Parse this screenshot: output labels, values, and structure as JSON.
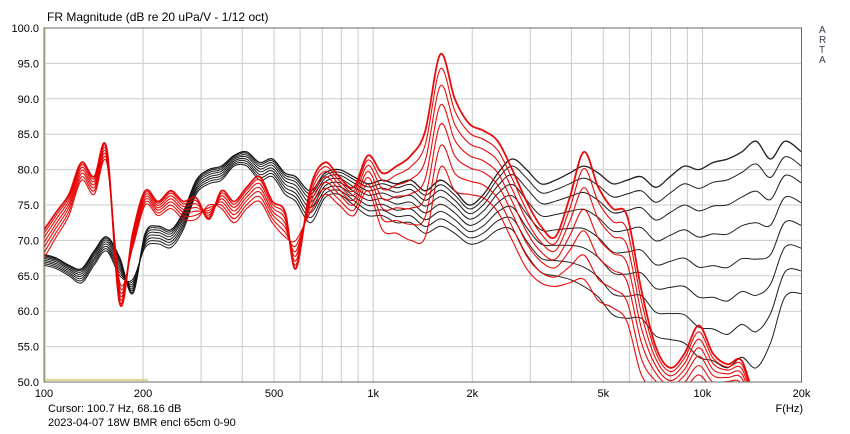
{
  "title": "FR Magnitude (dB re 20 uPa/V - 1/12 oct)",
  "branding": {
    "letters": [
      "A",
      "R",
      "T",
      "A"
    ]
  },
  "footer": {
    "cursor_readout": "Cursor: 100.7 Hz, 68.16 dB",
    "status_line": "2023-04-07 18W BMR encl 65cm 0-90"
  },
  "colors": {
    "background": "#ffffff",
    "grid": "#cbcbcb",
    "plot_border": "#6b6b6b",
    "text": "#000000",
    "marker_yellow": "#d8d88f",
    "red_family": "#e60000",
    "black_family": "#141414",
    "watermark_text": "#3a3a52"
  },
  "axes": {
    "x_unit_label": "F(Hz)",
    "f_range": [
      100,
      20000
    ],
    "db_range": [
      50,
      100
    ],
    "x_gridlines": [
      100,
      200,
      300,
      400,
      500,
      600,
      700,
      800,
      900,
      1000,
      2000,
      3000,
      4000,
      5000,
      6000,
      7000,
      8000,
      9000,
      10000,
      20000
    ],
    "x_ticks": [
      {
        "f": 100,
        "label": "100"
      },
      {
        "f": 200,
        "label": "200"
      },
      {
        "f": 500,
        "label": "500"
      },
      {
        "f": 1000,
        "label": "1k"
      },
      {
        "f": 2000,
        "label": "2k"
      },
      {
        "f": 5000,
        "label": "5k"
      },
      {
        "f": 10000,
        "label": "10k"
      },
      {
        "f": 20000,
        "label": "20k"
      }
    ],
    "y_ticks": [
      {
        "db": 100,
        "label": "100.0"
      },
      {
        "db": 95,
        "label": "95.0"
      },
      {
        "db": 90,
        "label": "90.0"
      },
      {
        "db": 85,
        "label": "85.0"
      },
      {
        "db": 80,
        "label": "80.0"
      },
      {
        "db": 75,
        "label": "75.0"
      },
      {
        "db": 70,
        "label": "70.0"
      },
      {
        "db": 65,
        "label": "65.0"
      },
      {
        "db": 60,
        "label": "60.0"
      },
      {
        "db": 55,
        "label": "55.0"
      },
      {
        "db": 50,
        "label": "50.0"
      }
    ]
  },
  "cursor_marker": {
    "f_hz": 100.7,
    "band_f_range": [
      100,
      207
    ],
    "band_db": 50.3
  },
  "chart_data": {
    "type": "line",
    "title": "FR Magnitude (dB re 20 uPa/V - 1/12 oct)",
    "xlabel": "F(Hz)",
    "ylabel": "dB",
    "x_scale": "log",
    "xlim": [
      100,
      20000
    ],
    "ylim": [
      50,
      100
    ],
    "grid": true,
    "legend": "none",
    "model": "series[i][j] = base_db[j] - fractions[i] * spread_db[j]; angles span 0-90 deg",
    "f": [
      100,
      109,
      119,
      130,
      142,
      155,
      170,
      186,
      203,
      222,
      243,
      265,
      290,
      317,
      346,
      378,
      413,
      452,
      494,
      540,
      582,
      645,
      713,
      788,
      872,
      964,
      1066,
      1178,
      1303,
      1440,
      1600,
      1770,
      1957,
      2163,
      2392,
      2644,
      2923,
      3232,
      3573,
      3950,
      4367,
      4828,
      5338,
      5902,
      6525,
      7214,
      7976,
      8818,
      9749,
      10778,
      11916,
      13174,
      14565,
      16102,
      17802,
      20000
    ],
    "groups": [
      {
        "name": "black-family (BMR 0-90)",
        "color": "#141414",
        "fractions": [
          0,
          0.1,
          0.22,
          0.36,
          0.52,
          0.68,
          0.84,
          1
        ],
        "widths": [
          1.3,
          1,
          1,
          1,
          1,
          1,
          1,
          1
        ],
        "base_db": [
          68,
          67.5,
          66.5,
          66,
          68.5,
          70.5,
          67.5,
          62.5,
          71,
          72,
          71.5,
          74,
          78.5,
          80,
          80.5,
          82,
          82.5,
          81,
          81.5,
          79.5,
          79,
          77,
          79.5,
          80,
          79,
          78,
          78.5,
          78,
          78.5,
          77,
          78.5,
          77,
          75,
          76.5,
          79.5,
          81.5,
          80,
          78,
          78.5,
          79.5,
          80.5,
          79.5,
          78,
          78.5,
          79,
          77.5,
          79,
          80.5,
          80,
          81,
          81.5,
          82.5,
          84,
          81.5,
          84,
          82.5
        ],
        "spread_db": [
          1.5,
          1.5,
          1.5,
          2,
          2,
          2,
          2.5,
          -2,
          2,
          2.5,
          2.5,
          2.5,
          2,
          2,
          2,
          1.5,
          2,
          2.5,
          2.5,
          3,
          3.5,
          4.5,
          3.5,
          3.5,
          4,
          4.5,
          5,
          5.5,
          6,
          6,
          6.5,
          6,
          5.5,
          6.5,
          8,
          10,
          12,
          12.5,
          13.5,
          15,
          17,
          17.5,
          18.5,
          19.5,
          20,
          21,
          23,
          25,
          26.5,
          28,
          29.5,
          29,
          32,
          26,
          22,
          20
        ]
      },
      {
        "name": "red-family (18W 0-90)",
        "color": "#e60000",
        "fractions": [
          0,
          0.13,
          0.28,
          0.45,
          0.62,
          0.81,
          1
        ],
        "widths": [
          1.8,
          1.1,
          1.1,
          1.1,
          1.1,
          1.1,
          1.1
        ],
        "base_db": [
          71.5,
          74,
          76.5,
          81,
          79,
          83,
          61,
          71,
          77,
          75.5,
          77,
          75.5,
          76,
          73,
          77,
          75.5,
          77.5,
          79,
          75.5,
          74,
          66,
          77.5,
          81,
          79,
          77.5,
          82,
          79.5,
          80.5,
          82,
          85.5,
          96.3,
          90,
          86.5,
          85.5,
          84,
          80,
          75.5,
          72,
          70.5,
          76,
          82.5,
          77.5,
          74.5,
          73.5,
          63,
          55,
          52,
          54,
          58,
          54,
          52.5,
          53,
          47,
          45,
          44,
          43
        ],
        "spread_db": [
          4,
          3.5,
          3,
          2.5,
          2.5,
          2,
          -3,
          2,
          2,
          2,
          2.5,
          2.5,
          3,
          -2,
          2.5,
          3,
          3,
          3.5,
          3,
          3.5,
          -4,
          3.5,
          4.5,
          4,
          4,
          5,
          8,
          9.5,
          12,
          15,
          16,
          13,
          10,
          9.5,
          10,
          10,
          9.5,
          8,
          7,
          12,
          18,
          16,
          14,
          15,
          12,
          6,
          4,
          5,
          7,
          5,
          3,
          4,
          3,
          3,
          3,
          3
        ]
      }
    ]
  }
}
